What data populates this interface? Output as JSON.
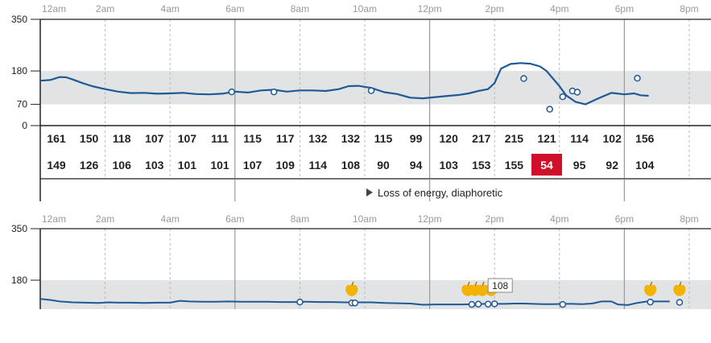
{
  "chart_data": [
    {
      "type": "line",
      "title": "",
      "x_ticks": [
        "12am",
        "2am",
        "4am",
        "6am",
        "8am",
        "10am",
        "12pm",
        "2pm",
        "4pm",
        "6pm",
        "8pm"
      ],
      "x_range_hours": [
        0,
        20
      ],
      "y_ticks": [
        350,
        180,
        70,
        0
      ],
      "ylim": [
        0,
        350
      ],
      "target_range": [
        70,
        180
      ],
      "accent_color": "#1f5a96",
      "band_color": "#e2e3e5",
      "low_color": "#d0102a",
      "series": [
        {
          "x": [
            0,
            0.3,
            0.6,
            0.8,
            1.0,
            1.3,
            1.6,
            2.0,
            2.4,
            2.8,
            3.2,
            3.6,
            4.0,
            4.4,
            4.8,
            5.2,
            5.6,
            6.0,
            6.4,
            6.8,
            7.2,
            7.6,
            8.0,
            8.4,
            8.8,
            9.2,
            9.5,
            9.8,
            10.2,
            10.6,
            11.0,
            11.4,
            11.8,
            12.2,
            12.6,
            12.9,
            13.2,
            13.5,
            13.8,
            14.0,
            14.2,
            14.5,
            14.8,
            15.1,
            15.4,
            15.6,
            15.8,
            16.0,
            16.2,
            16.5,
            16.8,
            17.2,
            17.6,
            18.0,
            18.3,
            18.5,
            18.75
          ],
          "values": [
            148,
            150,
            160,
            159,
            152,
            140,
            130,
            120,
            112,
            107,
            108,
            105,
            106,
            108,
            104,
            103,
            105,
            112,
            109,
            116,
            118,
            112,
            116,
            116,
            114,
            120,
            130,
            131,
            124,
            110,
            104,
            92,
            90,
            94,
            98,
            101,
            106,
            114,
            120,
            140,
            188,
            203,
            206,
            204,
            195,
            180,
            155,
            130,
            100,
            78,
            70,
            90,
            108,
            103,
            106,
            100,
            98
          ]
        }
      ],
      "points": [
        {
          "x": 5.9,
          "y": 111
        },
        {
          "x": 7.2,
          "y": 111
        },
        {
          "x": 10.2,
          "y": 115
        },
        {
          "x": 14.9,
          "y": 155
        },
        {
          "x": 15.7,
          "y": 54
        },
        {
          "x": 16.1,
          "y": 95
        },
        {
          "x": 16.4,
          "y": 114
        },
        {
          "x": 16.55,
          "y": 110
        },
        {
          "x": 18.4,
          "y": 156
        }
      ],
      "grid": true,
      "readings_top": [
        "161",
        "150",
        "118",
        "107",
        "107",
        "111",
        "115",
        "117",
        "132",
        "132",
        "115",
        "99",
        "120",
        "217",
        "215",
        "121",
        "114",
        "102",
        "156"
      ],
      "readings_bottom": [
        "149",
        "126",
        "106",
        "103",
        "101",
        "101",
        "107",
        "109",
        "114",
        "108",
        "90",
        "94",
        "103",
        "153",
        "155",
        "54",
        "95",
        "92",
        "104"
      ],
      "low_reading": "54",
      "annotation": "Loss of energy, diaphoretic"
    },
    {
      "type": "line",
      "title": "",
      "x_ticks": [
        "12am",
        "2am",
        "4am",
        "6am",
        "8am",
        "10am",
        "12pm",
        "2pm",
        "4pm",
        "6pm",
        "8pm"
      ],
      "x_range_hours": [
        0,
        20
      ],
      "y_ticks": [
        350,
        180
      ],
      "ylim": [
        70,
        350
      ],
      "target_range": [
        70,
        180
      ],
      "series": [
        {
          "x": [
            0,
            0.3,
            0.6,
            1.0,
            1.4,
            1.8,
            2.1,
            2.4,
            2.8,
            3.2,
            3.6,
            4.0,
            4.3,
            4.6,
            5.0,
            5.4,
            5.8,
            6.2,
            6.6,
            7.0,
            7.4,
            7.8,
            8.2,
            8.6,
            9.0,
            9.4,
            9.8,
            10.2,
            10.6,
            11.0,
            11.4,
            11.8,
            12.2,
            12.6,
            13.0,
            13.4,
            13.7,
            14.0,
            14.3,
            14.6,
            14.9,
            15.2,
            15.5,
            15.8,
            16.1,
            16.4,
            16.7,
            17.0,
            17.3,
            17.6,
            17.8,
            18.1,
            18.4,
            18.7,
            19.0,
            19.4
          ],
          "values": [
            118,
            115,
            110,
            107,
            106,
            105,
            107,
            106,
            106,
            105,
            106,
            106,
            112,
            110,
            109,
            109,
            110,
            109,
            109,
            109,
            108,
            108,
            109,
            108,
            108,
            107,
            107,
            107,
            105,
            104,
            103,
            99,
            100,
            100,
            100,
            101,
            102,
            102,
            102,
            103,
            103,
            102,
            101,
            101,
            102,
            102,
            101,
            103,
            110,
            110,
            100,
            98,
            105,
            110,
            110,
            110
          ]
        }
      ],
      "points": [
        {
          "x": 8.0,
          "y": 108
        },
        {
          "x": 9.6,
          "y": 105
        },
        {
          "x": 9.7,
          "y": 105
        },
        {
          "x": 13.3,
          "y": 100
        },
        {
          "x": 13.5,
          "y": 101
        },
        {
          "x": 13.8,
          "y": 101
        },
        {
          "x": 14.0,
          "y": 102
        },
        {
          "x": 16.1,
          "y": 100
        },
        {
          "x": 18.8,
          "y": 108
        },
        {
          "x": 19.7,
          "y": 107
        }
      ],
      "meal_markers": [
        {
          "x": 9.6,
          "count": 1
        },
        {
          "x": 13.4,
          "count": 3
        },
        {
          "x": 13.9,
          "count": 1
        },
        {
          "x": 18.8,
          "count": 1
        },
        {
          "x": 19.7,
          "count": 1
        }
      ],
      "tooltip": "108"
    }
  ]
}
